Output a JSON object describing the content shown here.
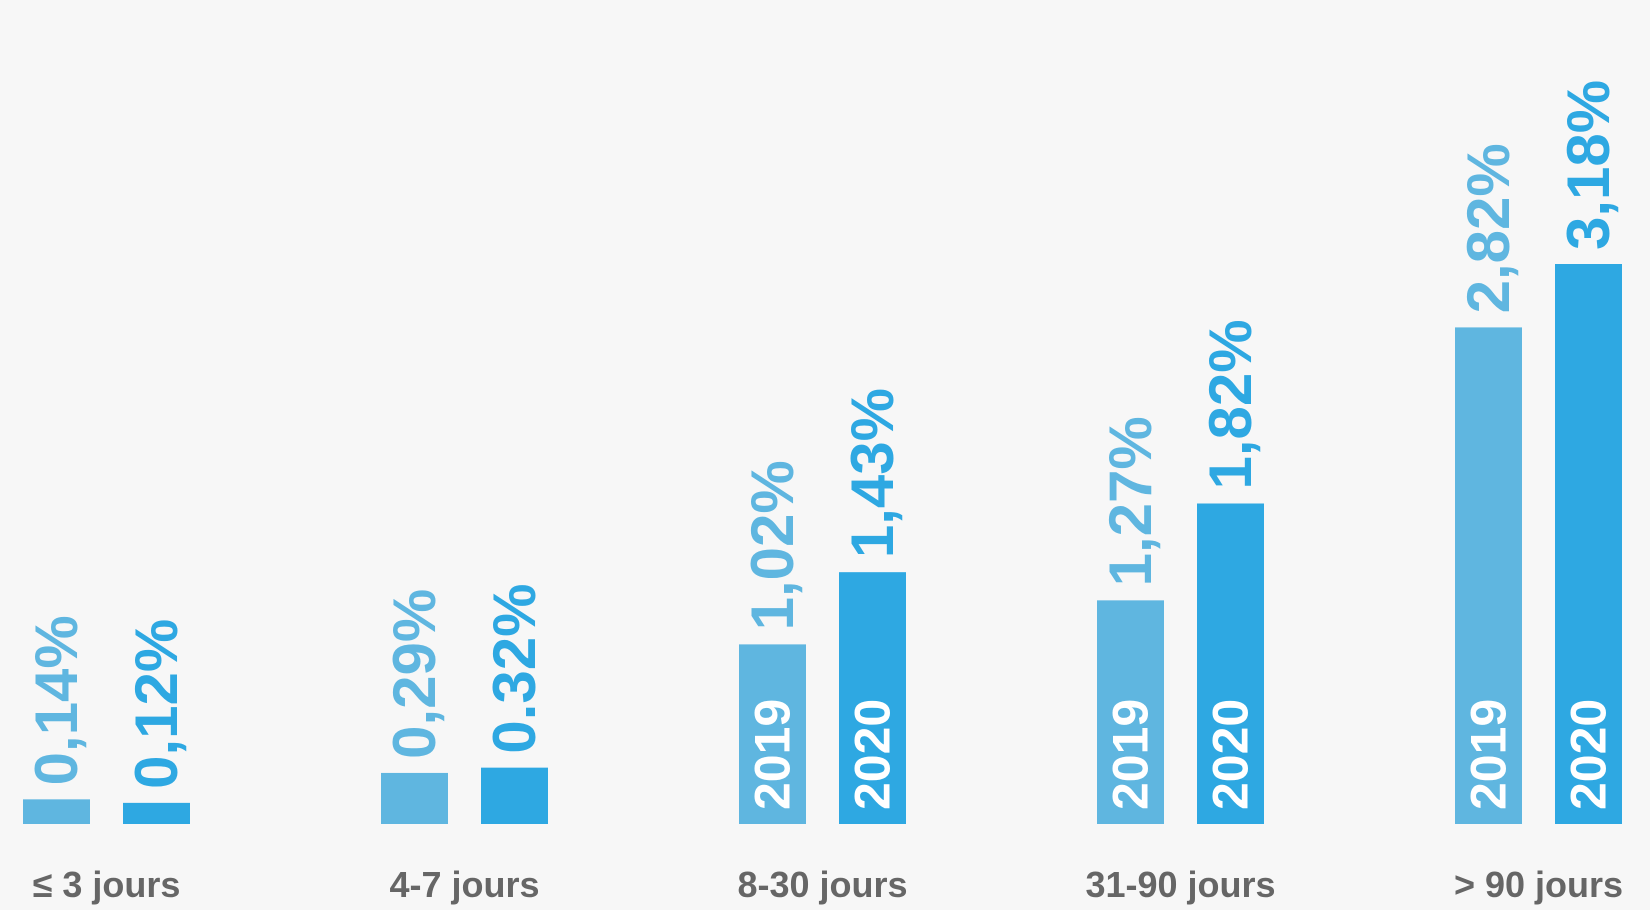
{
  "chart_data": {
    "type": "bar",
    "categories": [
      "≤ 3 jours",
      "4-7 jours",
      "8-30 jours",
      "31-90 jours",
      "> 90 jours"
    ],
    "series": [
      {
        "name": "2019",
        "color": "#5fb6e0",
        "values": [
          0.14,
          0.29,
          1.02,
          1.27,
          2.82
        ],
        "value_labels": [
          "0,14%",
          "0,29%",
          "1,02%",
          "1,27%",
          "2,82%"
        ]
      },
      {
        "name": "2020",
        "color": "#2ea8e2",
        "values": [
          0.12,
          0.32,
          1.43,
          1.82,
          3.18
        ],
        "value_labels": [
          "0,12%",
          "0.32%",
          "1,43%",
          "1,82%",
          "3,18%"
        ]
      }
    ]
  }
}
